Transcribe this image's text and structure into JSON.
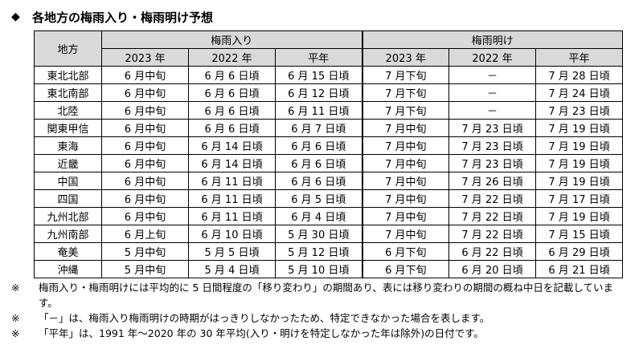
{
  "title": "各地方の梅雨入り・梅雨明け予想",
  "title_icon": "black-diamond",
  "table": {
    "region_header": "地方",
    "group_headers": [
      "梅雨入り",
      "梅雨明け"
    ],
    "sub_headers": [
      "2023 年",
      "2022 年",
      "平年",
      "2023 年",
      "2022 年",
      "平年"
    ],
    "rows": [
      {
        "region": "東北北部",
        "cells": [
          "6 月中旬",
          "6 月 6 日頃",
          "6 月 15 日頃",
          "7 月下旬",
          "－",
          "7 月 28 日頃"
        ]
      },
      {
        "region": "東北南部",
        "cells": [
          "6 月中旬",
          "6 月 6 日頃",
          "6 月 12 日頃",
          "7 月下旬",
          "－",
          "7 月 24 日頃"
        ]
      },
      {
        "region": "北陸",
        "cells": [
          "6 月中旬",
          "6 月 6 日頃",
          "6 月 11 日頃",
          "7 月下旬",
          "－",
          "7 月 23 日頃"
        ]
      },
      {
        "region": "関東甲信",
        "cells": [
          "6 月中旬",
          "6 月 6 日頃",
          "6 月 7 日頃",
          "7 月中旬",
          "7 月 23 日頃",
          "7 月 19 日頃"
        ]
      },
      {
        "region": "東海",
        "cells": [
          "6 月中旬",
          "6 月 14 日頃",
          "6 月 6 日頃",
          "7 月中旬",
          "7 月 23 日頃",
          "7 月 19 日頃"
        ]
      },
      {
        "region": "近畿",
        "cells": [
          "6 月中旬",
          "6 月 14 日頃",
          "6 月 6 日頃",
          "7 月中旬",
          "7 月 23 日頃",
          "7 月 19 日頃"
        ]
      },
      {
        "region": "中国",
        "cells": [
          "6 月中旬",
          "6 月 11 日頃",
          "6 月 6 日頃",
          "7 月中旬",
          "7 月 26 日頃",
          "7 月 19 日頃"
        ]
      },
      {
        "region": "四国",
        "cells": [
          "6 月中旬",
          "6 月 11 日頃",
          "6 月 5 日頃",
          "7 月中旬",
          "7 月 22 日頃",
          "7 月 17 日頃"
        ]
      },
      {
        "region": "九州北部",
        "cells": [
          "6 月中旬",
          "6 月 11 日頃",
          "6 月 4 日頃",
          "7 月中旬",
          "7 月 22 日頃",
          "7 月 19 日頃"
        ]
      },
      {
        "region": "九州南部",
        "cells": [
          "6 月上旬",
          "6 月 10 日頃",
          "5 月 30 日頃",
          "7 月中旬",
          "7 月 22 日頃",
          "7 月 15 日頃"
        ]
      },
      {
        "region": "奄美",
        "cells": [
          "5 月中旬",
          "5 月 5 日頃",
          "5 月 12 日頃",
          "6 月下旬",
          "6 月 22 日頃",
          "6 月 29 日頃"
        ]
      },
      {
        "region": "沖縄",
        "cells": [
          "5 月中旬",
          "5 月 4 日頃",
          "5 月 10 日頃",
          "6 月下旬",
          "6 月 20 日頃",
          "6 月 21 日頃"
        ]
      }
    ]
  },
  "notes": [
    {
      "mark": "※",
      "text": "梅雨入り・梅雨明けには平均的に 5 日間程度の「移り変わり」の期間あり、表には移り変わりの期間の概ね中日を記載しています。"
    },
    {
      "mark": "※",
      "text": "「－」は、梅雨入り梅雨明けの時期がはっきりしなかったため、特定できなかった場合を表します。"
    },
    {
      "mark": "※",
      "text": "「平年」は、1991 年～2020 年の 30 年平均(入り・明けを特定しなかった年は除外)の日付です。"
    }
  ]
}
